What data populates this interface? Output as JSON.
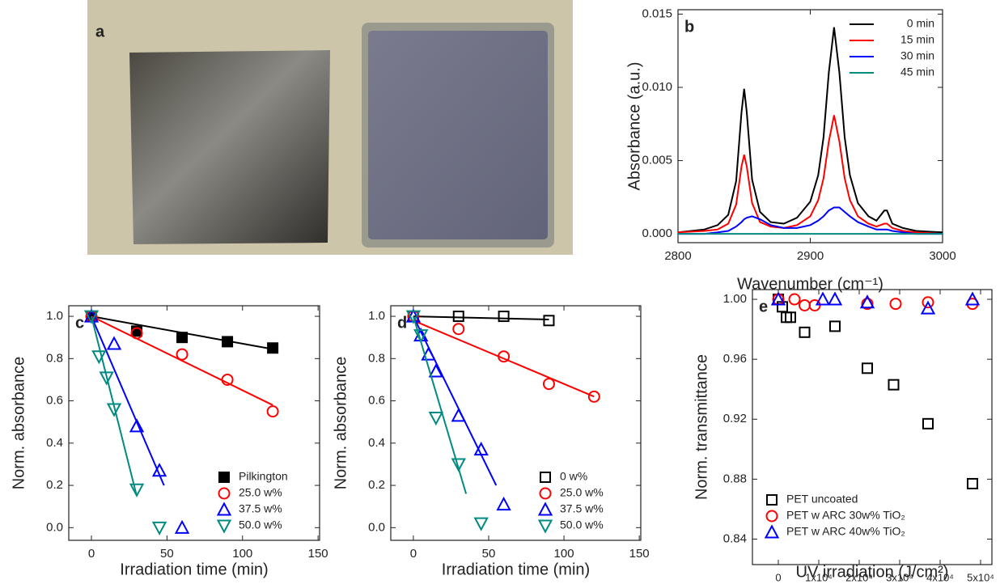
{
  "photo": {
    "label": "a"
  },
  "chart_data": [
    {
      "type": "line",
      "label": "b",
      "x_label": "Wavenumber (cm⁻¹)",
      "y_label": "Absorbance (a.u.)",
      "xlim": [
        2800,
        3000
      ],
      "xticks": [
        2800,
        2900,
        3000
      ],
      "ylim": [
        -0.0006,
        0.0153
      ],
      "yticks": [
        {
          "value": 0,
          "label": "0.000"
        },
        {
          "value": 0.005,
          "label": "0.005"
        },
        {
          "value": 0.01,
          "label": "0.010"
        },
        {
          "value": 0.015,
          "label": "0.015"
        }
      ],
      "legend": "upper right",
      "x": [
        2800,
        2820,
        2830,
        2838,
        2844,
        2848,
        2850,
        2852,
        2856,
        2862,
        2870,
        2880,
        2890,
        2900,
        2906,
        2910,
        2914,
        2918,
        2922,
        2926,
        2930,
        2936,
        2944,
        2950,
        2956,
        2958,
        2962,
        2970,
        2980,
        3000
      ],
      "series": [
        {
          "name": "0 min",
          "color": "#000000",
          "values": [
            0.0001,
            0.0003,
            0.0006,
            0.0013,
            0.0036,
            0.0083,
            0.0099,
            0.0083,
            0.0037,
            0.0015,
            0.0008,
            0.0007,
            0.0011,
            0.0022,
            0.004,
            0.0066,
            0.011,
            0.0141,
            0.011,
            0.0066,
            0.004,
            0.0021,
            0.0012,
            0.0009,
            0.0016,
            0.0016,
            0.0007,
            0.0004,
            0.0002,
            0.0001
          ]
        },
        {
          "name": "15 min",
          "color": "#ff0000",
          "values": [
            0.0001,
            0.0002,
            0.0003,
            0.0007,
            0.002,
            0.0046,
            0.0054,
            0.0046,
            0.0021,
            0.0008,
            0.0005,
            0.0004,
            0.0006,
            0.0012,
            0.0023,
            0.0038,
            0.0063,
            0.0081,
            0.0063,
            0.0038,
            0.0023,
            0.0012,
            0.0007,
            0.0005,
            0.0007,
            0.0007,
            0.0004,
            0.0002,
            0.0001,
            0
          ]
        },
        {
          "name": "30 min",
          "color": "#0000ff",
          "values": [
            0,
            0,
            0.0001,
            0.0002,
            0.0005,
            0.0008,
            0.001,
            0.0011,
            0.0012,
            0.001,
            0.0006,
            0.0004,
            0.0004,
            0.0006,
            0.0009,
            0.0012,
            0.0016,
            0.0018,
            0.0018,
            0.0015,
            0.0012,
            0.0008,
            0.0005,
            0.0003,
            0.0003,
            0.0003,
            0.0002,
            0.0001,
            0,
            0
          ]
        },
        {
          "name": "45 min",
          "color": "#008b80",
          "values": [
            0,
            0,
            0,
            0,
            0,
            0,
            0,
            0,
            0,
            0,
            0,
            0,
            0,
            0,
            0,
            0,
            0,
            0,
            0,
            0,
            0,
            0,
            0,
            0,
            0,
            0,
            0,
            0,
            0,
            0
          ]
        }
      ]
    },
    {
      "type": "scatter",
      "label": "c",
      "x_label": "Irradiation time (min)",
      "y_label": "Norm. absorbance",
      "xlim": [
        -15,
        151
      ],
      "xticks": [
        0,
        50,
        100,
        150
      ],
      "ylim": [
        -0.06,
        1.05
      ],
      "yticks": [
        {
          "value": 0,
          "label": "0.0"
        },
        0.2,
        0.4,
        0.6,
        0.8,
        {
          "value": 1,
          "label": "1.0"
        }
      ],
      "legend": "lower right",
      "series": [
        {
          "name": "Pilkington",
          "color": "#000000",
          "marker": "square-filled",
          "x": [
            0,
            30,
            60,
            90,
            120
          ],
          "values": [
            1.0,
            0.93,
            0.9,
            0.88,
            0.85
          ],
          "fit_x": [
            0,
            120
          ],
          "fit_y": [
            1.0,
            0.845
          ]
        },
        {
          "name": "25.0 w%",
          "color": "#ff0000",
          "marker": "circle",
          "x": [
            0,
            30,
            60,
            90,
            120
          ],
          "values": [
            1.0,
            0.92,
            0.82,
            0.7,
            0.55
          ],
          "fit_x": [
            0,
            120
          ],
          "fit_y": [
            1.0,
            0.58
          ]
        },
        {
          "name": "37.5 w%",
          "color": "#0000ff",
          "marker": "triangle-up",
          "x": [
            0,
            15,
            30,
            45,
            60
          ],
          "values": [
            1.0,
            0.87,
            0.48,
            0.27,
            0.0
          ],
          "fit_x": [
            0,
            48
          ],
          "fit_y": [
            1.0,
            0.2
          ]
        },
        {
          "name": "50.0 w%",
          "color": "#008b80",
          "marker": "triangle-down",
          "x": [
            0,
            5,
            10,
            15,
            30,
            45
          ],
          "values": [
            1.0,
            0.81,
            0.71,
            0.56,
            0.18,
            0.0
          ],
          "fit_x": [
            0,
            30
          ],
          "fit_y": [
            1.0,
            0.15
          ]
        }
      ]
    },
    {
      "type": "scatter",
      "label": "d",
      "x_label": "Irradiation time (min)",
      "y_label": "Norm. absorbance",
      "xlim": [
        -15,
        151
      ],
      "xticks": [
        0,
        50,
        100,
        150
      ],
      "ylim": [
        -0.06,
        1.05
      ],
      "yticks": [
        {
          "value": 0,
          "label": "0.0"
        },
        0.2,
        0.4,
        0.6,
        0.8,
        {
          "value": 1,
          "label": "1.0"
        }
      ],
      "legend": "lower right",
      "series": [
        {
          "name": "0 w%",
          "color": "#000000",
          "marker": "square",
          "x": [
            0,
            30,
            60,
            90
          ],
          "values": [
            1.0,
            1.0,
            1.0,
            0.98
          ],
          "fit_x": [
            0,
            90
          ],
          "fit_y": [
            1.0,
            0.985
          ]
        },
        {
          "name": "25.0 w%",
          "color": "#ff0000",
          "marker": "circle",
          "x": [
            0,
            30,
            60,
            90,
            120
          ],
          "values": [
            1.0,
            0.94,
            0.81,
            0.68,
            0.62
          ],
          "fit_x": [
            0,
            120
          ],
          "fit_y": [
            0.98,
            0.62
          ]
        },
        {
          "name": "37.5 w%",
          "color": "#0000ff",
          "marker": "triangle-up",
          "x": [
            0,
            5,
            10,
            15,
            30,
            45,
            60
          ],
          "values": [
            1.0,
            0.91,
            0.82,
            0.74,
            0.53,
            0.37,
            0.11
          ],
          "fit_x": [
            0,
            55
          ],
          "fit_y": [
            1.0,
            0.2
          ]
        },
        {
          "name": "50.0 w%",
          "color": "#008b80",
          "marker": "triangle-down",
          "x": [
            0,
            5,
            15,
            30,
            45
          ],
          "values": [
            1.0,
            0.91,
            0.52,
            0.3,
            0.02
          ],
          "fit_x": [
            0,
            35
          ],
          "fit_y": [
            1.0,
            0.16
          ]
        }
      ]
    },
    {
      "type": "scatter",
      "label": "e",
      "x_label": "UV irradiation (J/cm²)",
      "y_label": "Norm. transmittance",
      "xlim": [
        -6400,
        52800
      ],
      "xticks": [
        0,
        {
          "value": 10000,
          "label": "1x10⁴"
        },
        {
          "value": 20000,
          "label": "2x10⁴"
        },
        {
          "value": 30000,
          "label": "3x10⁴"
        },
        {
          "value": 40000,
          "label": "4x10⁴"
        },
        {
          "value": 50000,
          "label": "5x10⁴"
        }
      ],
      "ylim": [
        0.823,
        1.0065
      ],
      "yticks": [
        0.84,
        0.88,
        0.92,
        0.96,
        {
          "value": 1,
          "label": "1.00"
        }
      ],
      "legend": "lower left",
      "series": [
        {
          "name": "PET uncoated",
          "color": "#000000",
          "marker": "square",
          "x": [
            0,
            1000,
            2000,
            3000,
            6500,
            14000,
            22000,
            28500,
            37000,
            48000
          ],
          "values": [
            1.0,
            0.995,
            0.988,
            0.988,
            0.978,
            0.982,
            0.954,
            0.943,
            0.917,
            0.877
          ]
        },
        {
          "name": "PET w ARC 30w% TiO₂",
          "color": "#ff0000",
          "marker": "circle",
          "x": [
            0,
            4000,
            6500,
            9000,
            22000,
            29000,
            37000,
            48000
          ],
          "values": [
            1.0,
            1.0,
            0.996,
            0.996,
            0.997,
            0.997,
            0.998,
            0.997
          ]
        },
        {
          "name": "PET w ARC 40w% TiO₂",
          "color": "#0000ff",
          "marker": "triangle-up",
          "x": [
            0,
            11000,
            14000,
            22000,
            37000,
            48000
          ],
          "values": [
            1.0,
            1.0,
            1.0,
            0.998,
            0.994,
            1.0
          ]
        }
      ]
    }
  ]
}
